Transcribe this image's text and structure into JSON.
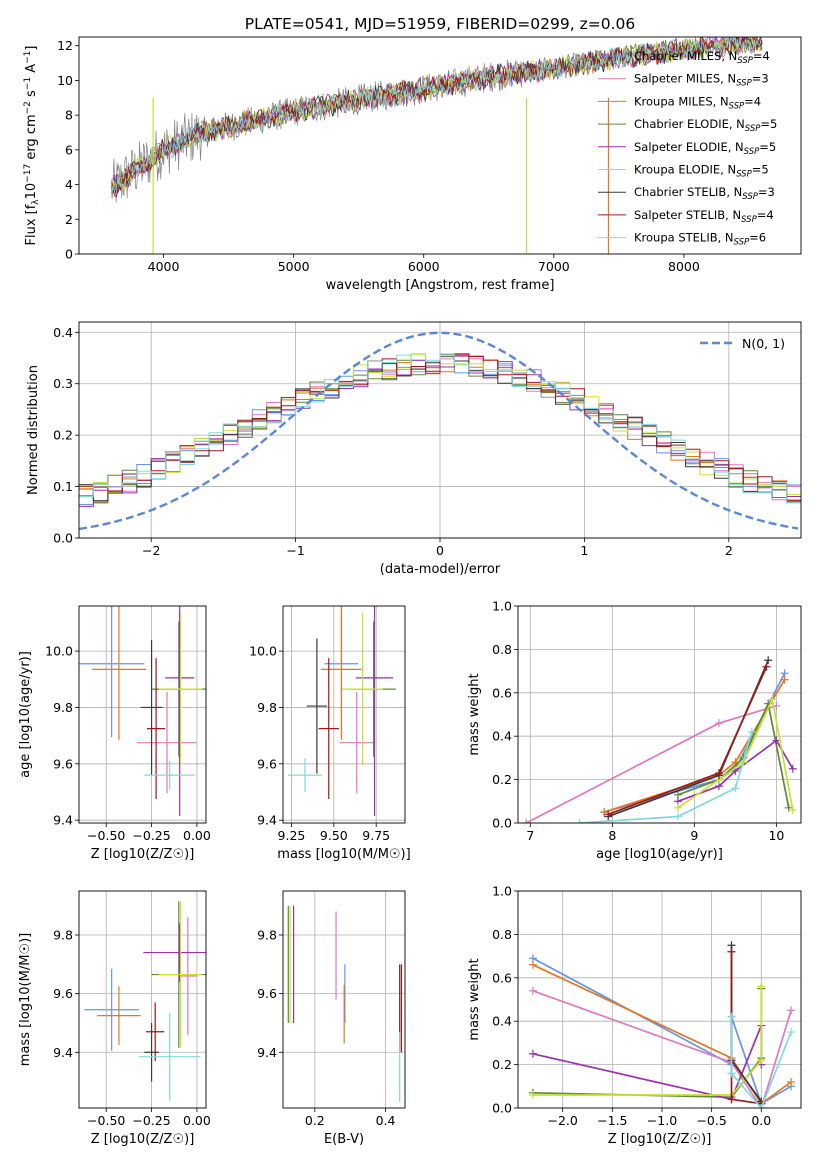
{
  "figure": {
    "title": "PLATE=0541, MJD=51959, FIBERID=0299, z=0.06"
  },
  "colors": {
    "Chabrier MILES": "#6495ed",
    "Salpeter MILES": "#e377c2",
    "Kroupa MILES": "#e8761f",
    "Chabrier ELODIE": "#5a8a3a",
    "Salpeter ELODIE": "#9b30b0",
    "Kroupa ELODIE": "#c8e030",
    "Chabrier STELIB": "#3a3a3a",
    "Salpeter STELIB": "#a01818",
    "Kroupa STELIB": "#80d8e0",
    "data": "#808080",
    "gaussian": "#5a88d8",
    "grid": "#b0b0b0"
  },
  "chart_data": [
    {
      "id": "spectrum",
      "type": "line",
      "title": "PLATE=0541, MJD=51959, FIBERID=0299, z=0.06",
      "xlabel": "wavelength [Angstrom, rest frame]",
      "ylabel": "Flux [f_λ 10^-17 erg cm^-2 s^-1 A^-1]",
      "xlim": [
        3350,
        8900
      ],
      "ylim": [
        0,
        12.5
      ],
      "xticks": [
        4000,
        5000,
        6000,
        7000,
        8000
      ],
      "yticks": [
        0,
        2,
        4,
        6,
        8,
        10,
        12
      ],
      "grid": false,
      "legend_placement": "right",
      "continuum_x": [
        3600,
        3800,
        4000,
        4300,
        4600,
        5000,
        5500,
        6000,
        6500,
        7000,
        7500,
        8000,
        8500
      ],
      "continuum_y": [
        3.8,
        4.9,
        6.0,
        7.0,
        7.5,
        8.2,
        8.9,
        9.5,
        10.2,
        10.7,
        11.3,
        11.8,
        12.2
      ],
      "series": [
        {
          "name": "Chabrier MILES",
          "nssp": "4"
        },
        {
          "name": "Salpeter MILES",
          "nssp": "3"
        },
        {
          "name": "Kroupa MILES",
          "nssp": "4"
        },
        {
          "name": "Chabrier ELODIE",
          "nssp": "5"
        },
        {
          "name": "Salpeter ELODIE",
          "nssp": "5"
        },
        {
          "name": "Kroupa ELODIE",
          "nssp": "5"
        },
        {
          "name": "Chabrier STELIB",
          "nssp": "3"
        },
        {
          "name": "Salpeter STELIB",
          "nssp": "4"
        },
        {
          "name": "Kroupa STELIB",
          "nssp": "6"
        }
      ]
    },
    {
      "id": "residuals",
      "type": "line",
      "xlabel": "(data-model)/error",
      "ylabel": "Normed distribution",
      "xlim": [
        -2.5,
        2.5
      ],
      "ylim": [
        0,
        0.42
      ],
      "xticks": [
        -2,
        -1,
        0,
        1,
        2
      ],
      "yticks": [
        0.0,
        0.1,
        0.2,
        0.3,
        0.4
      ],
      "grid": true,
      "legend_placement": "top-right",
      "gaussian_label": "N(0, 1)"
    },
    {
      "id": "age-vs-Z",
      "type": "scatter",
      "xlabel": "Z [log10(Z/Z☉)]",
      "ylabel": "age [log10(age/yr)]",
      "xlim": [
        -0.65,
        0.05
      ],
      "ylim": [
        9.39,
        10.16
      ],
      "xticks": [
        -0.5,
        -0.25,
        0.0
      ],
      "yticks": [
        9.4,
        9.6,
        9.8,
        10.0
      ],
      "points": [
        {
          "series": "Chabrier MILES",
          "x": -0.47,
          "xerr": 0.18,
          "y": 9.955,
          "yerr": 0.26
        },
        {
          "series": "Salpeter MILES",
          "x": -0.165,
          "xerr": 0.165,
          "y": 9.675,
          "yerr": 0.18
        },
        {
          "series": "Kroupa MILES",
          "x": -0.43,
          "xerr": 0.15,
          "y": 9.935,
          "yerr": 0.25
        },
        {
          "series": "Chabrier ELODIE",
          "x": -0.1,
          "xerr": 0.15,
          "y": 9.865,
          "yerr": 0.24
        },
        {
          "series": "Salpeter ELODIE",
          "x": -0.095,
          "xerr": 0.08,
          "y": 9.905,
          "yerr": 0.49
        },
        {
          "series": "Kroupa ELODIE",
          "x": -0.09,
          "xerr": 0.12,
          "y": 9.865,
          "yerr": 0.27
        },
        {
          "series": "Chabrier STELIB",
          "x": -0.25,
          "xerr": 0.06,
          "y": 9.8,
          "yerr": 0.24
        },
        {
          "series": "Salpeter STELIB",
          "x": -0.225,
          "xerr": 0.05,
          "y": 9.725,
          "yerr": 0.25
        },
        {
          "series": "Kroupa STELIB",
          "x": -0.15,
          "xerr": 0.14,
          "y": 9.56,
          "yerr": 0.05
        }
      ]
    },
    {
      "id": "age-vs-mass",
      "type": "scatter",
      "xlabel": "mass [log10(M/M☉)]",
      "ylabel": "",
      "xlim": [
        9.2,
        9.92
      ],
      "ylim": [
        9.39,
        10.16
      ],
      "xticks": [
        9.25,
        9.5,
        9.75
      ],
      "yticks": [
        9.4,
        9.6,
        9.8,
        10.0
      ],
      "points": [
        {
          "series": "Chabrier MILES",
          "x": 9.545,
          "xerr": 0.1,
          "y": 9.955,
          "yerr": 0.26
        },
        {
          "series": "Salpeter MILES",
          "x": 9.635,
          "xerr": 0.1,
          "y": 9.675,
          "yerr": 0.18
        },
        {
          "series": "Kroupa MILES",
          "x": 9.545,
          "xerr": 0.12,
          "y": 9.935,
          "yerr": 0.25
        },
        {
          "series": "Chabrier ELODIE",
          "x": 9.735,
          "xerr": 0.13,
          "y": 9.865,
          "yerr": 0.24
        },
        {
          "series": "Salpeter ELODIE",
          "x": 9.74,
          "xerr": 0.11,
          "y": 9.905,
          "yerr": 0.49
        },
        {
          "series": "Kroupa ELODIE",
          "x": 9.67,
          "xerr": 0.12,
          "y": 9.865,
          "yerr": 0.27
        },
        {
          "series": "Chabrier STELIB",
          "x": 9.4,
          "xerr": 0.06,
          "y": 9.805,
          "yerr": 0.24
        },
        {
          "series": "Salpeter STELIB",
          "x": 9.47,
          "xerr": 0.06,
          "y": 9.725,
          "yerr": 0.25
        },
        {
          "series": "Kroupa STELIB",
          "x": 9.33,
          "xerr": 0.1,
          "y": 9.56,
          "yerr": 0.06
        }
      ]
    },
    {
      "id": "weight-vs-age",
      "type": "line",
      "xlabel": "age [log10(age/yr)]",
      "ylabel": "mass weight",
      "xlim": [
        6.85,
        10.3
      ],
      "ylim": [
        0,
        1.0
      ],
      "xticks": [
        7,
        8,
        9,
        10
      ],
      "yticks": [
        0.0,
        0.2,
        0.4,
        0.6,
        0.8,
        1.0
      ],
      "grid": true,
      "series": [
        {
          "name": "Chabrier MILES",
          "x": [
            7.9,
            9.3,
            9.5,
            10.1
          ],
          "y": [
            0.05,
            0.2,
            0.25,
            0.69
          ]
        },
        {
          "name": "Salpeter MILES",
          "x": [
            6.95,
            9.3,
            10.0
          ],
          "y": [
            0.0,
            0.46,
            0.54
          ]
        },
        {
          "name": "Kroupa MILES",
          "x": [
            7.9,
            9.3,
            9.5,
            10.1
          ],
          "y": [
            0.05,
            0.22,
            0.28,
            0.66
          ]
        },
        {
          "name": "Chabrier ELODIE",
          "x": [
            8.8,
            9.3,
            9.6,
            9.9,
            10.15
          ],
          "y": [
            0.13,
            0.2,
            0.3,
            0.55,
            0.07
          ]
        },
        {
          "name": "Salpeter ELODIE",
          "x": [
            8.8,
            9.3,
            9.5,
            10.0,
            10.2
          ],
          "y": [
            0.1,
            0.17,
            0.24,
            0.38,
            0.25
          ]
        },
        {
          "name": "Kroupa ELODIE",
          "x": [
            8.8,
            9.3,
            9.6,
            9.95,
            10.2
          ],
          "y": [
            0.07,
            0.2,
            0.28,
            0.57,
            0.06
          ]
        },
        {
          "name": "Chabrier STELIB",
          "x": [
            7.95,
            9.3,
            9.9
          ],
          "y": [
            0.03,
            0.22,
            0.75
          ]
        },
        {
          "name": "Salpeter STELIB",
          "x": [
            7.95,
            9.3,
            9.88
          ],
          "y": [
            0.04,
            0.23,
            0.72
          ]
        },
        {
          "name": "Kroupa STELIB",
          "x": [
            7.6,
            8.8,
            9.5,
            9.7
          ],
          "y": [
            0.0,
            0.03,
            0.16,
            0.42
          ]
        }
      ]
    },
    {
      "id": "mass-vs-Z",
      "type": "scatter",
      "xlabel": "Z [log10(Z/Z☉)]",
      "ylabel": "mass [log10(M/M☉)]",
      "xlim": [
        -0.65,
        0.05
      ],
      "ylim": [
        9.21,
        9.95
      ],
      "xticks": [
        -0.5,
        -0.25,
        0.0
      ],
      "yticks": [
        9.4,
        9.6,
        9.8
      ],
      "points": [
        {
          "series": "Chabrier MILES",
          "x": -0.47,
          "xerr": 0.15,
          "y": 9.545,
          "yerr": 0.14
        },
        {
          "series": "Salpeter MILES",
          "x": -0.05,
          "xerr": 0.05,
          "y": 9.66,
          "yerr": 0.2
        },
        {
          "series": "Kroupa MILES",
          "x": -0.43,
          "xerr": 0.12,
          "y": 9.525,
          "yerr": 0.1
        },
        {
          "series": "Chabrier ELODIE",
          "x": -0.1,
          "xerr": 0.15,
          "y": 9.665,
          "yerr": 0.25
        },
        {
          "series": "Salpeter ELODIE",
          "x": -0.095,
          "xerr": 0.2,
          "y": 9.74,
          "yerr": 0.1
        },
        {
          "series": "Kroupa ELODIE",
          "x": -0.09,
          "xerr": 0.12,
          "y": 9.665,
          "yerr": 0.25
        },
        {
          "series": "Chabrier STELIB",
          "x": -0.25,
          "xerr": 0.04,
          "y": 9.4,
          "yerr": 0.1
        },
        {
          "series": "Salpeter STELIB",
          "x": -0.23,
          "xerr": 0.05,
          "y": 9.47,
          "yerr": 0.1
        },
        {
          "series": "Kroupa STELIB",
          "x": -0.15,
          "xerr": 0.17,
          "y": 9.385,
          "yerr": 0.15
        }
      ]
    },
    {
      "id": "mass-vs-EBV",
      "type": "scatter",
      "xlabel": "E(B-V)",
      "ylabel": "",
      "xlim": [
        0.11,
        0.455
      ],
      "ylim": [
        9.21,
        9.95
      ],
      "xticks": [
        0.2,
        0.4
      ],
      "yticks": [
        9.4,
        9.6,
        9.8
      ],
      "points": [
        {
          "series": "Chabrier MILES",
          "x": 0.285,
          "xerr": 0.0,
          "y": 9.6,
          "yerr": 0.1
        },
        {
          "series": "Salpeter MILES",
          "x": 0.26,
          "xerr": 0.0,
          "y": 9.73,
          "yerr": 0.15
        },
        {
          "series": "Kroupa MILES",
          "x": 0.283,
          "xerr": 0.0,
          "y": 9.53,
          "yerr": 0.1
        },
        {
          "series": "Chabrier ELODIE",
          "x": 0.125,
          "xerr": 0.0,
          "y": 9.7,
          "yerr": 0.2
        },
        {
          "series": "Salpeter ELODIE",
          "x": 0.14,
          "xerr": 0.0,
          "y": 9.7,
          "yerr": 0.2
        },
        {
          "series": "Kroupa ELODIE",
          "x": 0.13,
          "xerr": 0.0,
          "y": 9.7,
          "yerr": 0.2
        },
        {
          "series": "Chabrier STELIB",
          "x": 0.44,
          "xerr": 0.0,
          "y": 9.55,
          "yerr": 0.15
        },
        {
          "series": "Salpeter STELIB",
          "x": 0.445,
          "xerr": 0.0,
          "y": 9.55,
          "yerr": 0.15
        },
        {
          "series": "Kroupa STELIB",
          "x": 0.44,
          "xerr": 0.0,
          "y": 9.35,
          "yerr": 0.12
        }
      ]
    },
    {
      "id": "weight-vs-Z",
      "type": "line",
      "xlabel": "Z [log10(Z/Z☉)]",
      "ylabel": "mass weight",
      "xlim": [
        -2.45,
        0.4
      ],
      "ylim": [
        0,
        1.0
      ],
      "xticks": [
        -2.0,
        -1.5,
        -1.0,
        -0.5,
        0.0
      ],
      "yticks": [
        0.0,
        0.2,
        0.4,
        0.6,
        0.8,
        1.0
      ],
      "grid": true,
      "series": [
        {
          "name": "Chabrier MILES",
          "x": [
            -2.3,
            -0.3,
            -0.3,
            0.0,
            0.3
          ],
          "y": [
            0.69,
            0.2,
            0.42,
            0.02,
            0.1
          ]
        },
        {
          "name": "Salpeter MILES",
          "x": [
            -2.3,
            -0.3,
            0.0,
            0.3
          ],
          "y": [
            0.54,
            0.21,
            0.0,
            0.45
          ]
        },
        {
          "name": "Kroupa MILES",
          "x": [
            -2.3,
            -0.3,
            0.0,
            0.3
          ],
          "y": [
            0.66,
            0.23,
            0.02,
            0.12
          ]
        },
        {
          "name": "Chabrier ELODIE",
          "x": [
            -2.3,
            -0.3,
            0.0,
            0.0
          ],
          "y": [
            0.07,
            0.05,
            0.23,
            0.55
          ]
        },
        {
          "name": "Salpeter ELODIE",
          "x": [
            -2.3,
            -0.3,
            0.0,
            0.0
          ],
          "y": [
            0.25,
            0.04,
            0.38,
            0.2
          ]
        },
        {
          "name": "Kroupa ELODIE",
          "x": [
            -2.3,
            -0.3,
            0.0,
            0.0
          ],
          "y": [
            0.06,
            0.06,
            0.22,
            0.56
          ]
        },
        {
          "name": "Chabrier STELIB",
          "x": [
            -0.3,
            -0.3,
            0.0
          ],
          "y": [
            0.75,
            0.22,
            0.03
          ]
        },
        {
          "name": "Salpeter STELIB",
          "x": [
            -0.3,
            -0.3,
            0.0
          ],
          "y": [
            0.72,
            0.04,
            0.02
          ]
        },
        {
          "name": "Kroupa STELIB",
          "x": [
            -0.3,
            -0.3,
            0.0,
            0.3
          ],
          "y": [
            0.42,
            0.16,
            0.0,
            0.35
          ]
        }
      ]
    }
  ]
}
